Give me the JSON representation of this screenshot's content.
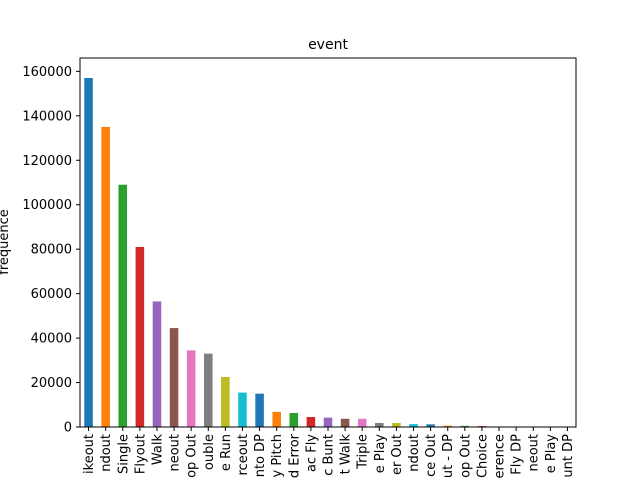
{
  "chart_data": {
    "type": "bar",
    "title": "event",
    "xlabel": "",
    "ylabel": "frequence",
    "ylim": [
      0,
      166000
    ],
    "yticks": [
      0,
      20000,
      40000,
      60000,
      80000,
      100000,
      120000,
      140000,
      160000
    ],
    "ytick_labels": [
      "0",
      "20000",
      "40000",
      "60000",
      "80000",
      "100000",
      "120000",
      "140000",
      "160000"
    ],
    "categories": [
      "Strikeout",
      "Groundout",
      "Single",
      "Flyout",
      "Walk",
      "Lineout",
      "Pop Out",
      "Double",
      "Home Run",
      "Forceout",
      "Grounded Into DP",
      "Hit By Pitch",
      "Field Error",
      "Sac Fly",
      "Sac Bunt",
      "Intent Walk",
      "Triple",
      "Double Play",
      "Batter Out",
      "Bunt Groundout",
      "Fielders Choice Out",
      "Strikeout - DP",
      "Bunt Pop Out",
      "Fielders Choice",
      "Catcher Interference",
      "Sac Fly DP",
      "Bunt Lineout",
      "Triple Play",
      "Sac Bunt DP"
    ],
    "tick_labels_visible": [
      "ikeout",
      "ndout",
      "Single",
      "Flyout",
      "Walk",
      "neout",
      "op Out",
      "ouble",
      "e Run",
      "rceout",
      "nto DP",
      "y Pitch",
      "d Error",
      "ac Fly",
      "c Bunt",
      "t Walk",
      "Triple",
      "e Play",
      "er Out",
      "ndout",
      "ce Out",
      "ut - DP",
      "op Out",
      "Choice",
      "erence",
      "Fly DP",
      "neout",
      "e Play",
      "unt DP"
    ],
    "values": [
      157000,
      135000,
      109000,
      81000,
      56500,
      44500,
      34500,
      33000,
      22500,
      15500,
      15000,
      6800,
      6300,
      4500,
      4200,
      3700,
      3700,
      1800,
      1800,
      1300,
      1200,
      600,
      500,
      400,
      150,
      80,
      60,
      30,
      20
    ],
    "colors": [
      "#1f77b4",
      "#ff7f0e",
      "#2ca02c",
      "#d62728",
      "#9467bd",
      "#8c564b",
      "#e377c2",
      "#7f7f7f",
      "#bcbd22",
      "#17becf"
    ],
    "grid": false,
    "legend": "none"
  }
}
